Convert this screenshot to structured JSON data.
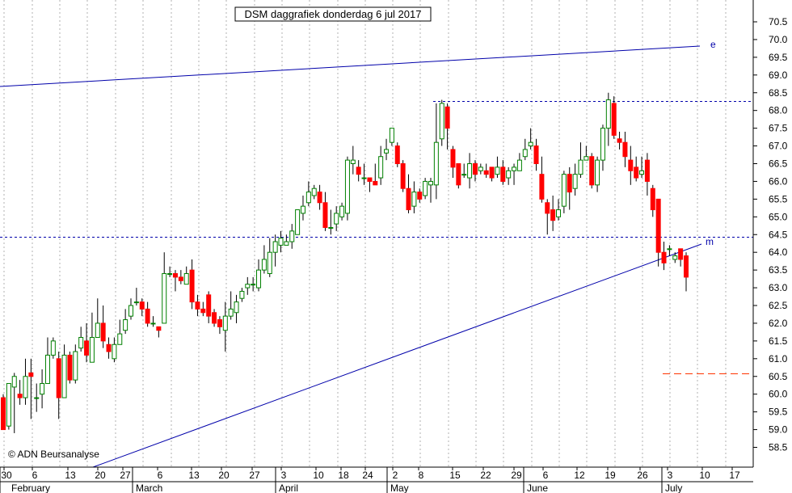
{
  "chart_data": {
    "type": "candlestick",
    "title": "DSM daggrafiek donderdag 6 jul 2017",
    "copyright": "© ADN Beursanalyse",
    "y_axis": {
      "min": 57.75,
      "max": 70.9,
      "ticks": [
        "58.5",
        "59.0",
        "59.5",
        "60.0",
        "60.5",
        "61.0",
        "61.5",
        "62.0",
        "62.5",
        "63.0",
        "63.5",
        "64.0",
        "64.5",
        "65.0",
        "65.5",
        "66.0",
        "66.5",
        "67.0",
        "67.5",
        "68.0",
        "68.5",
        "69.0",
        "69.5",
        "70.0",
        "70.5"
      ],
      "position": "right"
    },
    "x_axis": {
      "day_ticks": [
        "30",
        "6",
        "13",
        "20",
        "27",
        "6",
        "13",
        "20",
        "27",
        "3",
        "10",
        "18",
        "24",
        "2",
        "8",
        "15",
        "22",
        "29",
        "6",
        "12",
        "19",
        "26",
        "3",
        "10",
        "17"
      ],
      "months": [
        "February",
        "March",
        "April",
        "May",
        "June",
        "July"
      ]
    },
    "grid": {
      "vertical": true,
      "style": "dotted"
    },
    "colors": {
      "up": "#008000",
      "down": "#ff0000",
      "wick": "#000000",
      "trendline": "#0000aa",
      "support": "#ff3300"
    },
    "candles": [
      [
        59.9,
        59.0,
        60.0,
        59.0
      ],
      [
        59.1,
        60.3,
        60.3,
        59.0
      ],
      [
        60.2,
        60.5,
        60.6,
        58.9
      ],
      [
        60.0,
        59.9,
        60.4,
        59.7
      ],
      [
        59.9,
        60.5,
        61.0,
        59.7
      ],
      [
        60.6,
        60.5,
        61.0,
        59.3
      ],
      [
        59.9,
        59.9,
        60.3,
        59.5
      ],
      [
        60.0,
        60.3,
        60.7,
        59.6
      ],
      [
        60.3,
        61.1,
        61.6,
        60.3
      ],
      [
        61.1,
        61.5,
        61.6,
        61.0
      ],
      [
        61.0,
        59.9,
        61.2,
        59.3
      ],
      [
        59.9,
        61.1,
        61.4,
        59.9
      ],
      [
        61.1,
        60.4,
        61.2,
        60.3
      ],
      [
        60.4,
        61.2,
        61.4,
        60.3
      ],
      [
        61.3,
        61.6,
        61.9,
        61.2
      ],
      [
        61.5,
        61.1,
        62.0,
        60.9
      ],
      [
        60.9,
        61.6,
        62.3,
        60.9
      ],
      [
        61.6,
        62.0,
        62.7,
        61.6
      ],
      [
        62.0,
        61.5,
        62.5,
        61.3
      ],
      [
        61.4,
        61.2,
        61.6,
        61.0
      ],
      [
        61.0,
        61.4,
        61.6,
        60.9
      ],
      [
        61.4,
        61.7,
        62.1,
        61.4
      ],
      [
        61.8,
        62.1,
        62.4,
        61.7
      ],
      [
        62.2,
        62.5,
        62.7,
        62.1
      ],
      [
        62.6,
        62.6,
        63.0,
        62.5
      ],
      [
        62.6,
        62.4,
        62.7,
        62.2
      ],
      [
        62.4,
        62.0,
        62.6,
        61.9
      ],
      [
        62.0,
        62.0,
        62.2,
        61.9
      ],
      [
        61.9,
        61.8,
        61.9,
        61.6
      ],
      [
        62.0,
        63.4,
        64.0,
        62.5
      ],
      [
        63.4,
        63.4,
        63.6,
        63.3
      ],
      [
        63.4,
        63.3,
        63.5,
        62.9
      ],
      [
        63.3,
        63.2,
        63.5,
        63.1
      ],
      [
        63.1,
        63.4,
        63.6,
        63.1
      ],
      [
        63.5,
        62.6,
        63.8,
        62.4
      ],
      [
        62.6,
        62.4,
        62.8,
        62.2
      ],
      [
        62.4,
        62.3,
        62.6,
        62.2
      ],
      [
        62.8,
        62.2,
        62.9,
        62.0
      ],
      [
        62.3,
        62.0,
        62.4,
        61.9
      ],
      [
        62.1,
        61.9,
        62.2,
        61.7
      ],
      [
        61.8,
        62.2,
        62.6,
        61.2
      ],
      [
        62.2,
        62.4,
        62.9,
        62.1
      ],
      [
        62.3,
        62.6,
        62.8,
        62.0
      ],
      [
        62.7,
        62.9,
        63.0,
        62.6
      ],
      [
        63.0,
        63.1,
        63.3,
        62.8
      ],
      [
        63.1,
        63.1,
        63.3,
        62.9
      ],
      [
        63.0,
        63.5,
        63.8,
        62.9
      ],
      [
        63.5,
        63.8,
        64.2,
        63.4
      ],
      [
        63.4,
        64.0,
        64.4,
        63.3
      ],
      [
        64.0,
        64.3,
        64.5,
        63.6
      ],
      [
        64.2,
        64.4,
        64.6,
        64.0
      ],
      [
        64.2,
        64.3,
        64.5,
        64.2
      ],
      [
        64.3,
        64.6,
        64.8,
        64.1
      ],
      [
        64.5,
        65.2,
        65.2,
        64.5
      ],
      [
        65.1,
        65.3,
        65.6,
        64.9
      ],
      [
        65.4,
        65.7,
        66.0,
        65.3
      ],
      [
        65.6,
        65.8,
        65.9,
        65.5
      ],
      [
        65.7,
        65.4,
        65.9,
        65.2
      ],
      [
        65.4,
        64.7,
        65.7,
        64.6
      ],
      [
        64.7,
        64.7,
        65.2,
        64.5
      ],
      [
        64.8,
        65.1,
        65.3,
        64.6
      ],
      [
        65.0,
        65.3,
        65.4,
        64.9
      ],
      [
        65.1,
        66.6,
        66.7,
        64.9
      ],
      [
        66.5,
        66.6,
        67.0,
        66.2
      ],
      [
        66.4,
        66.2,
        66.6,
        66.0
      ],
      [
        66.1,
        66.1,
        66.5,
        65.9
      ],
      [
        66.1,
        66.0,
        66.1,
        65.7
      ],
      [
        66.0,
        65.9,
        66.5,
        65.9
      ],
      [
        66.1,
        66.7,
        67.0,
        65.9
      ],
      [
        66.8,
        66.9,
        67.2,
        66.6
      ],
      [
        67.1,
        67.5,
        67.5,
        67.0
      ],
      [
        67.0,
        66.5,
        67.1,
        66.4
      ],
      [
        66.5,
        65.8,
        66.6,
        65.7
      ],
      [
        65.8,
        65.2,
        66.2,
        65.1
      ],
      [
        65.3,
        65.7,
        66.0,
        65.1
      ],
      [
        65.7,
        65.5,
        65.8,
        65.4
      ],
      [
        65.6,
        66.0,
        66.1,
        65.5
      ],
      [
        65.9,
        66.0,
        66.1,
        65.4
      ],
      [
        65.9,
        67.1,
        68.2,
        65.5
      ],
      [
        67.2,
        68.2,
        68.3,
        67.0
      ],
      [
        68.1,
        67.5,
        68.2,
        66.9
      ],
      [
        66.9,
        66.4,
        67.0,
        66.1
      ],
      [
        66.5,
        65.9,
        66.5,
        65.8
      ],
      [
        66.2,
        66.2,
        66.5,
        66.1
      ],
      [
        66.1,
        66.5,
        66.8,
        65.8
      ],
      [
        66.5,
        66.2,
        66.6,
        66.0
      ],
      [
        66.3,
        66.4,
        66.5,
        66.2
      ],
      [
        66.3,
        66.2,
        66.5,
        66.1
      ],
      [
        66.4,
        66.1,
        66.4,
        66.0
      ],
      [
        66.2,
        66.4,
        66.7,
        66.1
      ],
      [
        66.4,
        66.0,
        66.6,
        65.9
      ],
      [
        66.1,
        66.3,
        66.4,
        65.9
      ],
      [
        66.3,
        66.4,
        66.5,
        65.9
      ],
      [
        66.3,
        66.6,
        66.8,
        66.3
      ],
      [
        66.7,
        66.9,
        67.2,
        66.6
      ],
      [
        67.0,
        67.1,
        67.5,
        66.9
      ],
      [
        67.0,
        66.5,
        67.2,
        66.3
      ],
      [
        66.2,
        65.5,
        66.7,
        65.4
      ],
      [
        65.4,
        65.1,
        65.5,
        64.5
      ],
      [
        65.2,
        64.9,
        65.6,
        64.6
      ],
      [
        65.0,
        65.2,
        65.5,
        64.9
      ],
      [
        65.3,
        66.2,
        66.3,
        65.1
      ],
      [
        66.2,
        65.7,
        66.4,
        65.2
      ],
      [
        65.8,
        66.2,
        66.5,
        65.6
      ],
      [
        66.2,
        66.6,
        67.1,
        66.1
      ],
      [
        66.6,
        66.7,
        67.0,
        66.6
      ],
      [
        66.7,
        65.9,
        66.8,
        65.8
      ],
      [
        65.9,
        66.6,
        66.7,
        65.7
      ],
      [
        66.6,
        67.5,
        67.6,
        66.3
      ],
      [
        67.5,
        68.3,
        68.5,
        67.0
      ],
      [
        68.2,
        67.3,
        68.4,
        67.2
      ],
      [
        67.2,
        67.1,
        67.4,
        66.9
      ],
      [
        67.1,
        66.7,
        67.4,
        66.4
      ],
      [
        66.6,
        66.3,
        67.0,
        65.9
      ],
      [
        66.4,
        66.1,
        66.7,
        66.0
      ],
      [
        66.2,
        66.3,
        66.7,
        66.1
      ],
      [
        66.6,
        66.0,
        66.8,
        65.6
      ],
      [
        65.8,
        65.2,
        65.9,
        65.0
      ],
      [
        65.5,
        64.0,
        65.5,
        63.6
      ],
      [
        64.0,
        63.7,
        64.3,
        63.5
      ],
      [
        64.1,
        64.1,
        64.2,
        63.9
      ],
      [
        63.8,
        63.9,
        64.0,
        63.7
      ],
      [
        64.1,
        63.8,
        64.1,
        63.6
      ],
      [
        63.9,
        63.3,
        64.0,
        62.9
      ]
    ]
  }
}
